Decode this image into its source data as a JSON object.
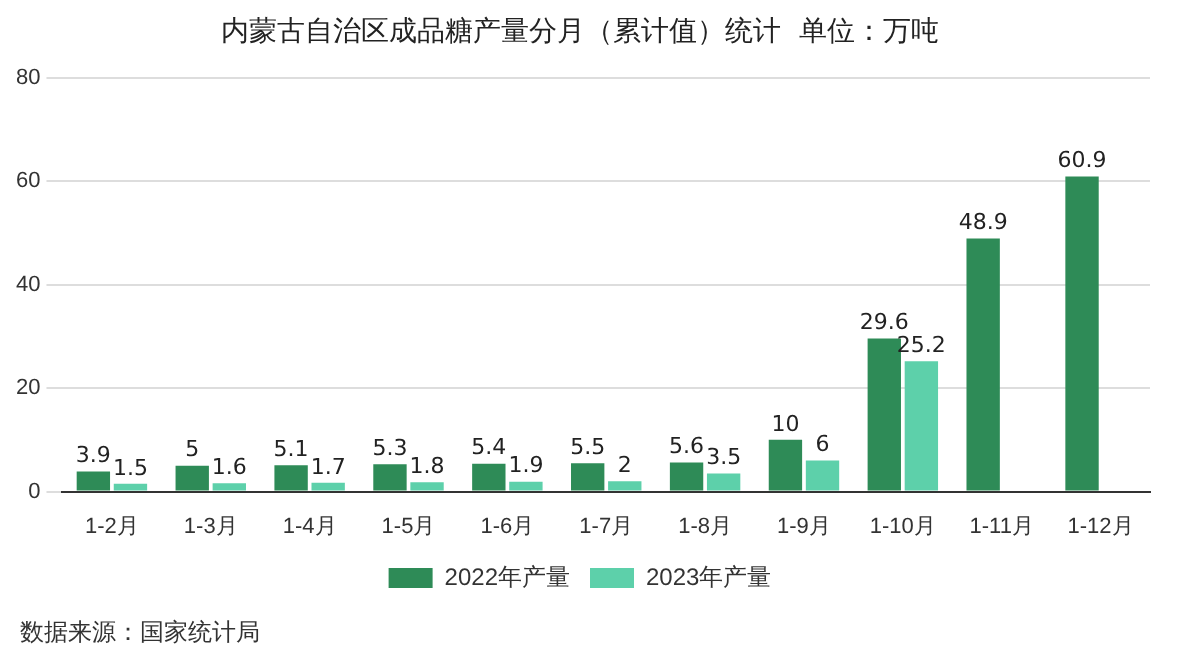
{
  "chart_data": {
    "type": "bar",
    "title": "内蒙古自治区成品糖产量分月（累计值）统计  单位：万吨",
    "categories": [
      "1-2月",
      "1-3月",
      "1-4月",
      "1-5月",
      "1-6月",
      "1-7月",
      "1-8月",
      "1-9月",
      "1-10月",
      "1-11月",
      "1-12月"
    ],
    "series": [
      {
        "name": "2022年产量",
        "color": "#2e8b57",
        "values": [
          3.9,
          5,
          5.1,
          5.3,
          5.4,
          5.5,
          5.6,
          10,
          29.6,
          48.9,
          60.9
        ]
      },
      {
        "name": "2023年产量",
        "color": "#5dd0aa",
        "values": [
          1.5,
          1.6,
          1.7,
          1.8,
          1.9,
          2,
          3.5,
          6,
          25.2,
          null,
          null
        ]
      }
    ],
    "ylim": [
      0,
      80
    ],
    "yticks": [
      0,
      20,
      40,
      60,
      80
    ],
    "grid": "y",
    "legend": "bottom",
    "data_labels": true,
    "annotations": [
      "数据来源：国家统计局"
    ]
  }
}
